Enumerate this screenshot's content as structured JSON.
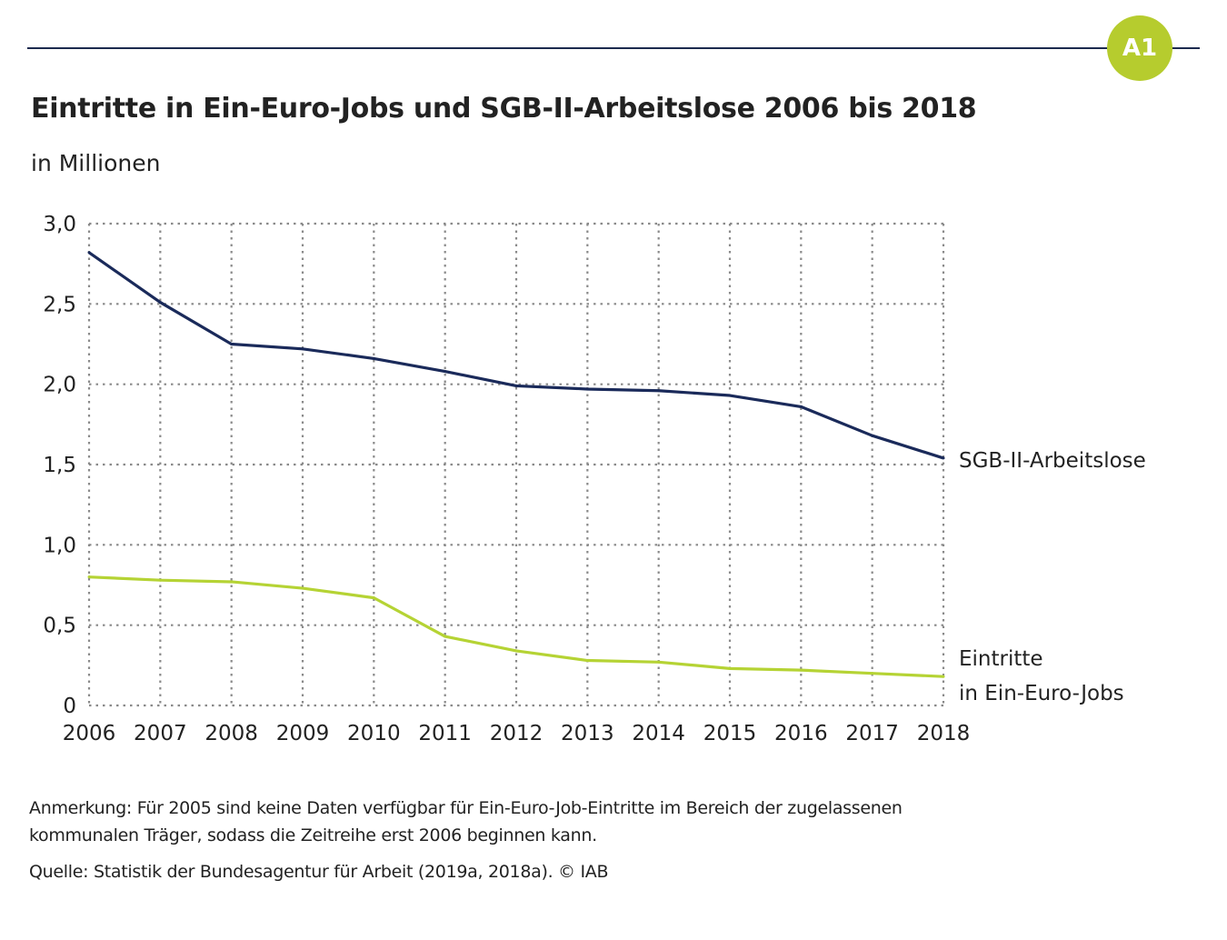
{
  "header": {
    "badge": "A1",
    "badge_color": "#b6cc2e",
    "rule_color": "#1c2a4e"
  },
  "footer": {
    "note_line1": "Anmerkung: Für 2005 sind keine Daten verfügbar für Ein-Euro-Job-Eintritte im Bereich der zugelassenen",
    "note_line2": "kommunalen Träger, sodass die Zeitreihe erst 2006 beginnen kann.",
    "source": "Quelle: Statistik der Bundesagentur für Arbeit (2019a, 2018a).  © IAB"
  },
  "chart_data": {
    "type": "line",
    "title": "Eintritte in Ein-Euro-Jobs und SGB-II-Arbeitslose 2006 bis 2018",
    "subtitle": "in Millionen",
    "xlabel": "",
    "ylabel": "in Millionen",
    "x": [
      "2006",
      "2007",
      "2008",
      "2009",
      "2010",
      "2011",
      "2012",
      "2013",
      "2014",
      "2015",
      "2016",
      "2017",
      "2018"
    ],
    "ylim": [
      0,
      3.0
    ],
    "yticks": [
      0,
      0.5,
      1.0,
      1.5,
      2.0,
      2.5,
      3.0
    ],
    "ytick_labels": [
      "0",
      "0,5",
      "1,0",
      "1,5",
      "2,0",
      "2,5",
      "3,0"
    ],
    "grid": true,
    "legend": "direct labels at right end of lines",
    "series": [
      {
        "name": "SGB-II-Arbeitslose",
        "label_lines": [
          "SGB-II-Arbeitslose"
        ],
        "color": "#1a2a5a",
        "values": [
          2.82,
          2.51,
          2.25,
          2.22,
          2.16,
          2.08,
          1.99,
          1.97,
          1.96,
          1.93,
          1.86,
          1.68,
          1.54
        ]
      },
      {
        "name": "Eintritte in Ein-Euro-Jobs",
        "label_lines": [
          "Eintritte",
          "in Ein-Euro-Jobs"
        ],
        "color": "#b5d334",
        "values": [
          0.8,
          0.78,
          0.77,
          0.73,
          0.67,
          0.43,
          0.34,
          0.28,
          0.27,
          0.23,
          0.22,
          0.2,
          0.18
        ]
      }
    ]
  }
}
